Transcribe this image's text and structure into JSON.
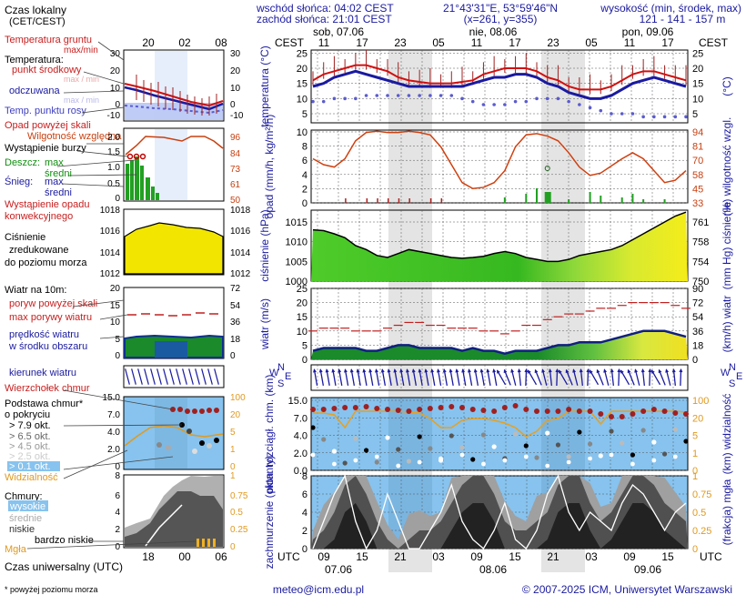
{
  "header": {
    "sunrise": "wschód słońca: 04:02 CEST",
    "sunset": "zachód słońca: 21:01 CEST",
    "coords": "21°43'31\"E, 53°59'46\"N",
    "grid": "(x=261, y=355)",
    "elev_title": "wysokość (min, środek, max)",
    "elev_values": "121 - 141 - 157 m",
    "cest": "CEST",
    "days": [
      "sob, 07.06",
      "nie, 08.06",
      "pon, 09.06"
    ],
    "hours_top": [
      "11",
      "17",
      "23",
      "05",
      "11",
      "17",
      "23",
      "05",
      "11",
      "17"
    ],
    "hours_bottom": [
      "09",
      "15",
      "21",
      "03",
      "09",
      "15",
      "21",
      "03",
      "09",
      "15"
    ],
    "dates_bottom": [
      "07.06",
      "08.06",
      "09.06"
    ],
    "utc": "UTC"
  },
  "legend": {
    "local_time": [
      "Czas lokalny",
      "(CET/CEST)"
    ],
    "local_hours": [
      "20",
      "02",
      "08"
    ],
    "soil_temp": [
      "Temperatura gruntu",
      "max/min"
    ],
    "temp_title": "Temperatura:",
    "temp_mid": "punkt środkowy",
    "temp_mid_hint": "max / min",
    "feels": "odczuwana",
    "feels_hint": "max / min",
    "dew": "Temp. punktu rosy",
    "temp_ticks": [
      "30",
      "20",
      "10",
      "0",
      "-10"
    ],
    "precip_over": "Opad powyżej skali",
    "humidity": "Wilgotność względna",
    "storm": "Wystąpienie burzy",
    "rain": "Deszcz:",
    "rain_max": "max",
    "rain_mid": "średni",
    "snow": "Śnieg:",
    "snow_max": "max",
    "snow_mid": "średni",
    "conv": [
      "Wystąpienie opadu",
      "konwekcyjnego"
    ],
    "precip_ticks": [
      "2.0",
      "1.5",
      "1.0",
      "0.5",
      "0"
    ],
    "hum_ticks": [
      "96",
      "84",
      "73",
      "61",
      "50"
    ],
    "press_title": [
      "Ciśnienie",
      "zredukowane",
      "do poziomu morza"
    ],
    "press_ticks": [
      "1018",
      "1016",
      "1014",
      "1012"
    ],
    "wind_title": "Wiatr na 10m:",
    "gust_over": "poryw powyżej skali",
    "gust_max": "max porywy wiatru",
    "wind_speed": [
      "prędkość wiatru",
      "w środku obszaru"
    ],
    "wind_ticks": [
      "20",
      "15",
      "10",
      "5",
      "0"
    ],
    "wind_kmh": [
      "72",
      "54",
      "36",
      "18",
      "0"
    ],
    "wind_dir": "kierunek wiatru",
    "cb_top": "Wierzchołek chmur",
    "cloud_base": [
      "Podstawa chmur*",
      "o pokryciu"
    ],
    "okt": [
      "> 7.9 okt.",
      "> 6.5 okt.",
      "> 4.5 okt.",
      "> 2.5 okt.",
      "> 0.1 okt."
    ],
    "base_ticks": [
      "15.0",
      "7.0",
      "4.0",
      "2.0",
      "0"
    ],
    "vis_ticks": [
      "100",
      "20",
      "5",
      "1",
      "0"
    ],
    "visibility": "Widzialność",
    "clouds_title": "Chmury:",
    "cl_high": "wysokie",
    "cl_mid": "średnie",
    "cl_low": "niskie",
    "cl_vlow": "bardzo niskie",
    "fog": "Mgła",
    "cl_ticks": [
      "8",
      "6",
      "4",
      "2",
      "0"
    ],
    "fog_ticks": [
      "1",
      "0.75",
      "0.5",
      "0.25",
      "0"
    ],
    "utc_hours": [
      "18",
      "00",
      "06"
    ],
    "utc_label": "Czas uniwersalny (UTC)",
    "footnote": "* powyżej poziomu morza",
    "e8": "8",
    "e1": "1"
  },
  "axes": {
    "temp_l": "temperatura (°C)",
    "temp_r": "(°C)",
    "precip_l": "opad (mm/h, kg/m²/h)",
    "precip_r": "(%) wilgotność wzgl.",
    "press_l": "ciśnienie (hPa)",
    "press_r": "(mm Hg) ciśnienie",
    "wind_l": "wiatr (m/s)",
    "wind_r": "(km/h) wiatr",
    "cb_l": "pion. rozciągł. chm. (km)",
    "cb_r": "(km) widzialność",
    "cl_l": "zachmurzenie (oktanty)",
    "cl_r": "(frakcja) mgła",
    "t_ticks_l": [
      "25",
      "20",
      "15",
      "10",
      "5"
    ],
    "t_ticks_r": [
      "25",
      "20",
      "15",
      "10",
      "5"
    ],
    "p_ticks_l": [
      "10",
      "8",
      "6",
      "4",
      "2",
      "0"
    ],
    "p_ticks_r": [
      "94",
      "81",
      "70",
      "58",
      "45",
      "33"
    ],
    "pr_ticks_l": [
      "1015",
      "1010",
      "1005",
      "1000"
    ],
    "pr_ticks_r": [
      "761",
      "758",
      "754",
      "750"
    ],
    "w_ticks_l": [
      "25",
      "20",
      "15",
      "10",
      "5",
      "0"
    ],
    "w_ticks_r": [
      "90",
      "72",
      "54",
      "36",
      "18",
      "0"
    ],
    "cb_ticks_l": [
      "15.0",
      "7.0",
      "4.0",
      "2.0",
      "0.0"
    ],
    "cb_ticks_r": [
      "100",
      "20",
      "5",
      "1",
      "0"
    ],
    "cl_ticks_l": [
      "8",
      "6",
      "4",
      "2",
      "0"
    ],
    "cl_ticks_r": [
      "1",
      "0.75",
      "0.5",
      "0.25",
      "0"
    ],
    "wind_dir_letters": [
      "N",
      "W",
      "S",
      "E"
    ]
  },
  "footer": {
    "email": "meteo@icm.edu.pl",
    "copy": "© 2007-2025 ICM, Uniwersytet Warszawski"
  },
  "chart_data": [
    {
      "type": "line",
      "x_unit": "hour index from 07.06 09 UTC",
      "title": "temperatura",
      "series": [
        {
          "name": "temperatura",
          "values": [
            16,
            18,
            19,
            20,
            21,
            21,
            20,
            19,
            17,
            16,
            15.5,
            15,
            15,
            15,
            15.5,
            16,
            18,
            19,
            20,
            20,
            20,
            19,
            17,
            16,
            14,
            13,
            13,
            13,
            14,
            16,
            18,
            19,
            19,
            18,
            17,
            16
          ]
        },
        {
          "name": "odczuwana",
          "values": [
            14,
            15,
            17,
            18,
            19,
            18,
            17,
            16,
            15,
            14,
            14,
            14,
            14,
            14,
            14,
            15,
            16,
            17,
            17,
            18,
            18,
            17,
            15,
            14,
            12,
            11,
            10,
            10,
            11,
            13,
            15,
            16,
            17,
            16,
            15,
            14
          ]
        },
        {
          "name": "temp. punktu rosy",
          "values": [
            9,
            9,
            10,
            10,
            10,
            11,
            11,
            11,
            11,
            11,
            11,
            11,
            11,
            11,
            10,
            9,
            8,
            8,
            8,
            9,
            9,
            10,
            10,
            10,
            9,
            8,
            7,
            6,
            5,
            5,
            5,
            4,
            4,
            4,
            4,
            4
          ]
        }
      ],
      "ylim": [
        2,
        26
      ]
    },
    {
      "type": "line",
      "title": "opad / wilgotność",
      "series": [
        {
          "name": "wilgotność względna",
          "values": [
            70,
            65,
            63,
            70,
            85,
            92,
            93,
            92,
            92,
            93,
            92,
            90,
            80,
            65,
            50,
            45,
            46,
            50,
            60,
            80,
            90,
            91,
            89,
            85,
            75,
            63,
            56,
            58,
            64,
            70,
            75,
            70,
            60,
            50,
            52,
            60
          ]
        }
      ],
      "ylim": [
        33,
        94
      ]
    },
    {
      "type": "area",
      "title": "ciśnienie",
      "series": [
        {
          "name": "ciśnienie",
          "values": [
            1013,
            1012.8,
            1012,
            1011,
            1009,
            1008,
            1006.5,
            1006,
            1007,
            1008,
            1007.5,
            1007,
            1006.5,
            1006,
            1005.8,
            1006,
            1006.3,
            1007,
            1007.5,
            1007,
            1006,
            1005.5,
            1005,
            1005,
            1005.5,
            1006.5,
            1007,
            1007.5,
            1008,
            1009,
            1010.5,
            1012,
            1013.5,
            1015,
            1016.5,
            1017.5
          ]
        }
      ],
      "ylim": [
        1000,
        1018
      ]
    },
    {
      "type": "area",
      "title": "wiatr",
      "series": [
        {
          "name": "prędkość wiatru",
          "values": [
            3,
            4,
            4,
            4,
            4,
            3,
            3,
            4,
            5,
            5,
            4,
            4,
            4,
            4,
            3,
            4,
            3,
            3,
            2,
            3,
            3,
            3,
            4,
            5,
            5,
            6,
            6,
            6,
            7,
            8,
            9,
            10,
            10,
            10,
            9,
            8
          ]
        },
        {
          "name": "porywy",
          "values": [
            10,
            11,
            11,
            11,
            10,
            10,
            10,
            11,
            12,
            13,
            13,
            12,
            12,
            11,
            11,
            11,
            10,
            10,
            9,
            10,
            12,
            12,
            14,
            15,
            16,
            16,
            17,
            18,
            18,
            19,
            20,
            20,
            20,
            20,
            19,
            18
          ]
        }
      ],
      "ylim": [
        0,
        25
      ]
    },
    {
      "type": "area",
      "title": "zachmurzenie",
      "series": [
        {
          "name": "chmury niskie",
          "values": [
            1,
            2,
            4,
            7,
            8,
            6,
            3,
            1,
            0,
            1,
            2,
            2,
            3,
            5,
            7,
            8,
            8,
            6,
            3,
            2,
            2,
            3,
            4,
            7,
            8,
            8,
            5,
            3,
            4,
            6,
            8,
            8,
            7,
            5,
            4,
            3
          ]
        }
      ],
      "ylim": [
        0,
        8
      ]
    }
  ]
}
